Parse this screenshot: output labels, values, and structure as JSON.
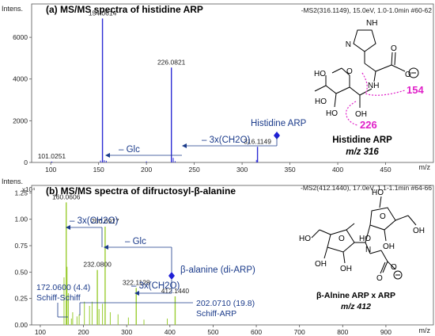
{
  "chart_data": [
    {
      "type": "bar",
      "title": "(a) MS/MS spectra of histidine ARP",
      "scan_info": "-MS2(316.1149), 15.0eV, 1.0-1.0min #60-62",
      "ylabel": "Intens.",
      "xlabel": "m/z",
      "xlim": [
        80,
        500
      ],
      "ylim": [
        0,
        7600
      ],
      "xticks": [
        "100",
        "150",
        "200",
        "250",
        "300",
        "350",
        "400",
        "450"
      ],
      "yticks": [
        "0",
        "2000",
        "4000",
        "6000"
      ],
      "series_color": "#2b2bd4",
      "peaks": [
        {
          "mz": 101.0251,
          "intensity": 40,
          "label": "101.0251"
        },
        {
          "mz": 154.0614,
          "intensity": 6900,
          "label": "154.0614"
        },
        {
          "mz": 226.0821,
          "intensity": 4550,
          "label": "226.0821"
        },
        {
          "mz": 316.1149,
          "intensity": 750,
          "label": "316.1149"
        },
        {
          "mz": 152.0,
          "intensity": 90
        },
        {
          "mz": 156.0,
          "intensity": 110
        },
        {
          "mz": 158.0,
          "intensity": 80
        },
        {
          "mz": 200.0,
          "intensity": 50
        },
        {
          "mz": 228.0,
          "intensity": 220
        },
        {
          "mz": 230.0,
          "intensity": 60
        },
        {
          "mz": 315.0,
          "intensity": 120
        }
      ],
      "annotations": {
        "precursor": "Histidine ARP",
        "loss_glc": "– Glc",
        "loss_ch2o": "– 3x(CH2O)"
      },
      "structure": {
        "name": "Histidine ARP",
        "mz": "m/z 316",
        "atoms": [
          "NH",
          "N",
          "O",
          "O",
          "NH",
          "HO",
          "HO",
          "OH",
          "HO",
          "O"
        ],
        "fragment_labels": [
          "154",
          "226"
        ],
        "fragment_color": "#e020c8"
      }
    },
    {
      "type": "bar",
      "title": "(b) MS/MS spectra of difructosyl-β-alanine",
      "scan_info": "-MS2(412.1440), 17.0eV, 1.1-1.1min #64-66",
      "ylabel": "Intens.",
      "y_multiplier": "x10⁴",
      "xlabel": "m/z",
      "xlim": [
        80,
        1010
      ],
      "ylim": [
        0,
        1.32
      ],
      "xticks": [
        "100",
        "200",
        "300",
        "400",
        "500",
        "600",
        "700",
        "800",
        "900"
      ],
      "yticks": [
        "0.00",
        "0.25",
        "0.50",
        "0.75",
        "1.00",
        "1.25"
      ],
      "series_color": "#9acd32",
      "peaks": [
        {
          "mz": 160.0606,
          "intensity": 1.16,
          "label": "160.0606"
        },
        {
          "mz": 172.06,
          "intensity": 0.06
        },
        {
          "mz": 202.071,
          "intensity": 0.22
        },
        {
          "mz": 232.08,
          "intensity": 0.52,
          "label": "232.0800"
        },
        {
          "mz": 250.0917,
          "intensity": 0.93,
          "label": "250.0917"
        },
        {
          "mz": 322.1128,
          "intensity": 0.35,
          "label": "322.1128"
        },
        {
          "mz": 412.144,
          "intensity": 0.27,
          "label": "412.1440"
        },
        {
          "mz": 155.0,
          "intensity": 0.45
        },
        {
          "mz": 162.0,
          "intensity": 0.55
        },
        {
          "mz": 165.0,
          "intensity": 0.3
        },
        {
          "mz": 175.0,
          "intensity": 0.12
        },
        {
          "mz": 185.0,
          "intensity": 0.08
        },
        {
          "mz": 190.0,
          "intensity": 0.1
        },
        {
          "mz": 214.0,
          "intensity": 0.18
        },
        {
          "mz": 220.0,
          "intensity": 0.22
        },
        {
          "mz": 236.0,
          "intensity": 0.15
        },
        {
          "mz": 244.0,
          "intensity": 0.2
        },
        {
          "mz": 262.0,
          "intensity": 0.12
        },
        {
          "mz": 280.0,
          "intensity": 0.1
        },
        {
          "mz": 304.0,
          "intensity": 0.07
        },
        {
          "mz": 340.0,
          "intensity": 0.05
        },
        {
          "mz": 394.0,
          "intensity": 0.06
        }
      ],
      "annotations": {
        "precursor": "β-alanine (di-ARP)",
        "loss_ch2o_a": "– 3x(CH2O)",
        "loss_glc": "– Glc",
        "loss_ch2o_b": "– 3x(CH2O)",
        "schiff_schiff_mz": "172.0600 (4.4)",
        "schiff_schiff": "Schiff-Schiff",
        "schiff_arp_mz": "202.0710 (19.8)",
        "schiff_arp": "Schiff-ARP"
      },
      "structure": {
        "name": "β-Alnine ARP x ARP",
        "mz": "m/z 412",
        "atoms": [
          "HO",
          "O",
          "OH",
          "OH",
          "HO",
          "O",
          "N",
          "HO",
          "OH",
          "OH",
          "O",
          "O"
        ]
      }
    }
  ]
}
